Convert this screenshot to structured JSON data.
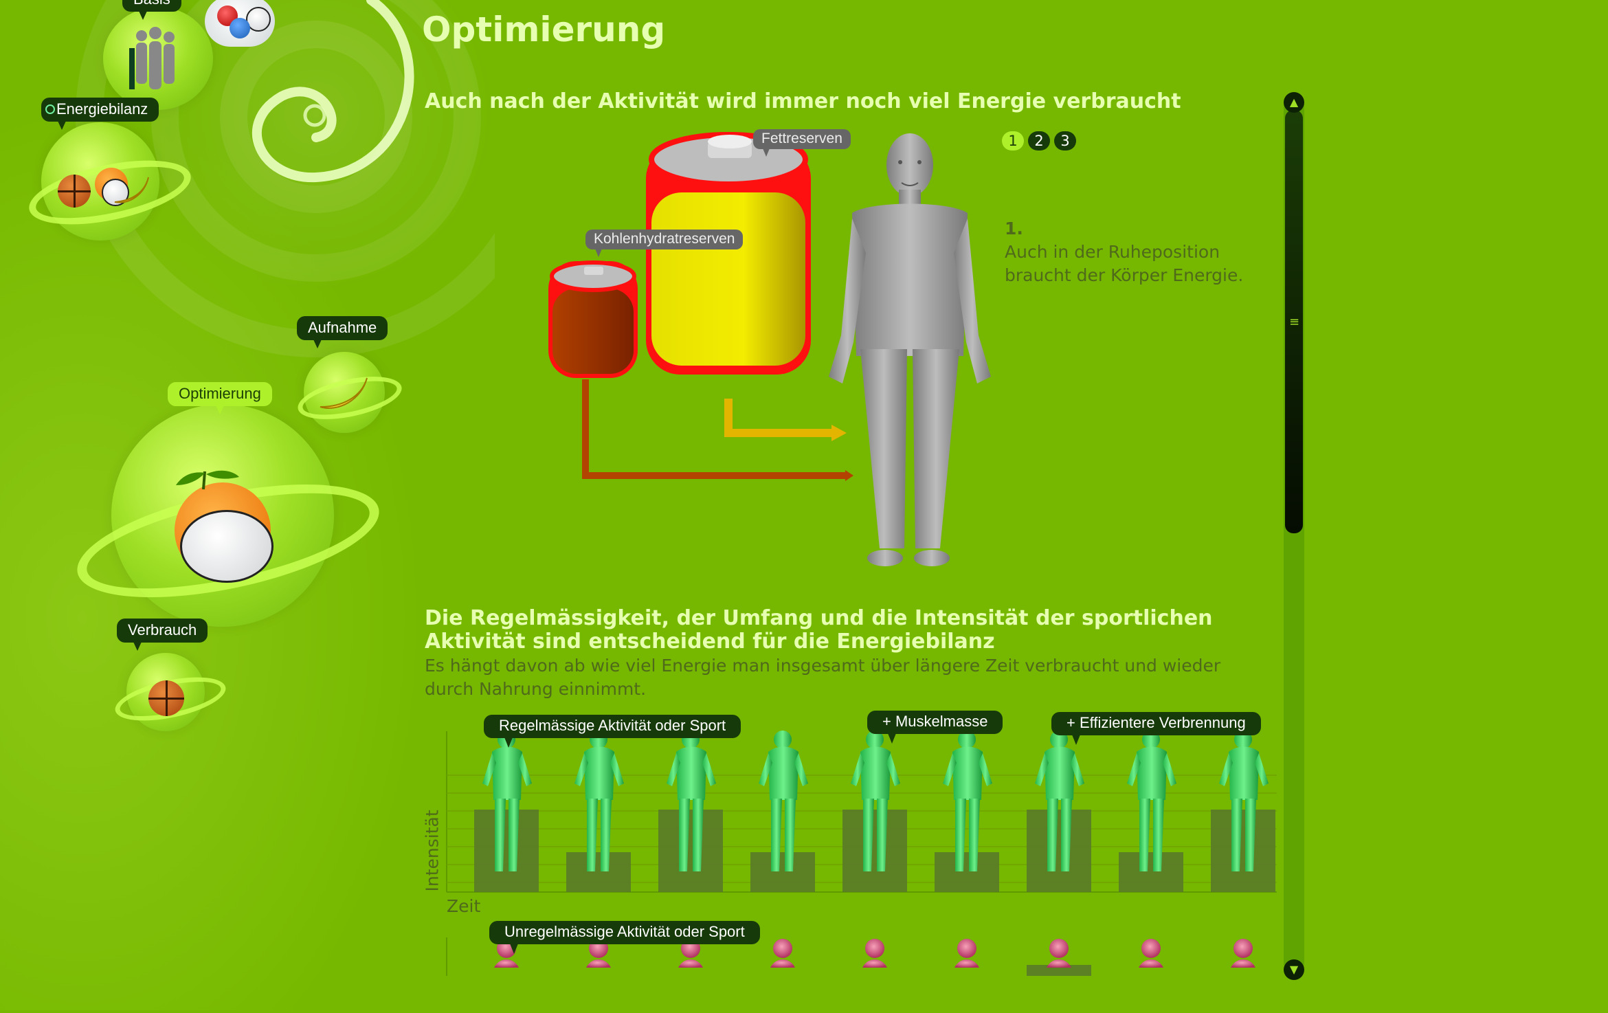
{
  "nav": {
    "basis": "Basis",
    "energiebilanz": "Energiebilanz",
    "aufnahme": "Aufnahme",
    "optimierung": "Optimierung",
    "verbrauch": "Verbrauch"
  },
  "page_title": "Optimierung",
  "section1": {
    "title": "Auch nach der Aktivität wird immer noch viel Energie verbraucht",
    "tag_fat": "Fettreserven",
    "tag_carb": "Kohlenhydratreserven",
    "pager": [
      "1",
      "2",
      "3"
    ],
    "active_page": "1",
    "step_number": "1.",
    "step_text": "Auch in der Ruheposition braucht der Körper Energie."
  },
  "section2": {
    "title_line1": "Die Regelmässigkeit, der Umfang und die Intensität der sportlichen",
    "title_line2": "Aktivität sind entscheidend für die Energiebilanz",
    "text": "Es hängt davon ab wie viel Energie man insgesamt über längere Zeit verbraucht und wieder durch Nahrung einnimmt.",
    "tag_regular": "Regelmässige Aktivität oder Sport",
    "tag_muscle": "+ Muskelmasse",
    "tag_efficient": "+ Effizientere Verbrennung",
    "axis_y": "Intensität",
    "axis_x": "Zeit",
    "tag_irregular": "Unregelmässige Aktivität oder Sport"
  },
  "colors": {
    "background": "#76b800",
    "title_text": "#e6ffb0",
    "nav_dark": "#163a0a",
    "nav_active": "#aef02a"
  }
}
